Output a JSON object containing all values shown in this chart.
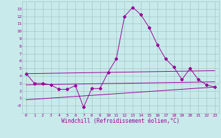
{
  "x": [
    0,
    1,
    2,
    3,
    4,
    5,
    6,
    7,
    8,
    9,
    10,
    11,
    12,
    13,
    14,
    15,
    16,
    17,
    18,
    19,
    20,
    21,
    22,
    23
  ],
  "line1": [
    4.3,
    3.0,
    3.0,
    2.8,
    2.2,
    2.2,
    2.7,
    -0.2,
    2.3,
    2.3,
    4.5,
    6.3,
    12.0,
    13.2,
    12.2,
    10.5,
    8.2,
    6.3,
    5.2,
    3.5,
    5.0,
    3.5,
    2.8,
    2.5
  ],
  "line3_x": [
    0,
    23
  ],
  "line3_y": [
    4.3,
    4.7
  ],
  "line4_x": [
    0,
    23
  ],
  "line4_y": [
    2.8,
    3.2
  ],
  "line5_x": [
    0,
    23
  ],
  "line5_y": [
    0.8,
    2.5
  ],
  "color": "#990099",
  "bg_color": "#c8eaea",
  "grid_color": "#a0c8c8",
  "xlabel": "Windchill (Refroidissement éolien,°C)",
  "ylim": [
    -1,
    14
  ],
  "xlim": [
    -0.5,
    23.5
  ],
  "yticks": [
    0,
    1,
    2,
    3,
    4,
    5,
    6,
    7,
    8,
    9,
    10,
    11,
    12,
    13
  ],
  "ytick_labels": [
    "-0",
    "1",
    "2",
    "3",
    "4",
    "5",
    "6",
    "7",
    "8",
    "9",
    "10",
    "11",
    "12",
    "13"
  ],
  "xticks": [
    0,
    1,
    2,
    3,
    4,
    5,
    6,
    7,
    8,
    9,
    10,
    11,
    12,
    13,
    14,
    15,
    16,
    17,
    18,
    19,
    20,
    21,
    22,
    23
  ]
}
